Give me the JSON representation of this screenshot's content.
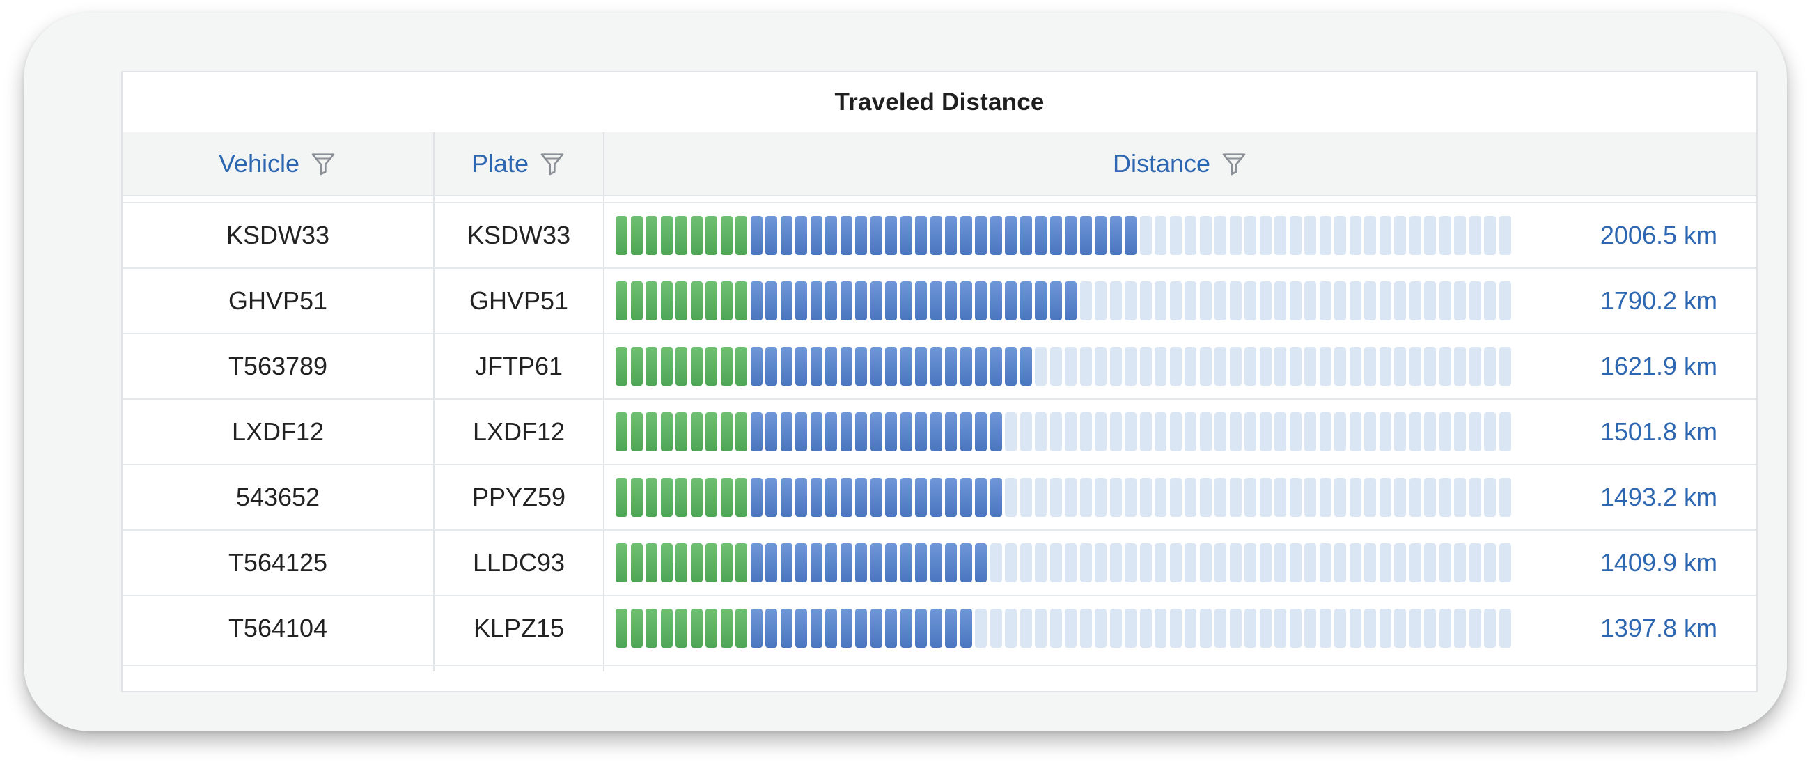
{
  "table": {
    "title": "Traveled Distance",
    "columns": {
      "vehicle": "Vehicle",
      "plate": "Plate",
      "distance": "Distance"
    },
    "bar_segments_total": 60,
    "bar_green_segments": 9,
    "max_distance_km": 3450,
    "rows": [
      {
        "vehicle": "KSDW33",
        "plate": "KSDW33",
        "distance_km": 2006.5,
        "distance_label": "2006.5 km"
      },
      {
        "vehicle": "GHVP51",
        "plate": "GHVP51",
        "distance_km": 1790.2,
        "distance_label": "1790.2 km"
      },
      {
        "vehicle": "T563789",
        "plate": "JFTP61",
        "distance_km": 1621.9,
        "distance_label": "1621.9 km"
      },
      {
        "vehicle": "LXDF12",
        "plate": "LXDF12",
        "distance_km": 1501.8,
        "distance_label": "1501.8 km"
      },
      {
        "vehicle": "543652",
        "plate": "PPYZ59",
        "distance_km": 1493.2,
        "distance_label": "1493.2 km"
      },
      {
        "vehicle": "T564125",
        "plate": "LLDC93",
        "distance_km": 1409.9,
        "distance_label": "1409.9 km"
      },
      {
        "vehicle": "T564104",
        "plate": "KLPZ15",
        "distance_km": 1397.8,
        "distance_label": "1397.8 km"
      }
    ]
  },
  "colors": {
    "accent": "#2e67b1",
    "bar_green": "#4ea655",
    "bar_blue": "#4a76bf",
    "bar_empty": "#dbe6f4"
  },
  "icons": {
    "filter": "filter-icon"
  }
}
